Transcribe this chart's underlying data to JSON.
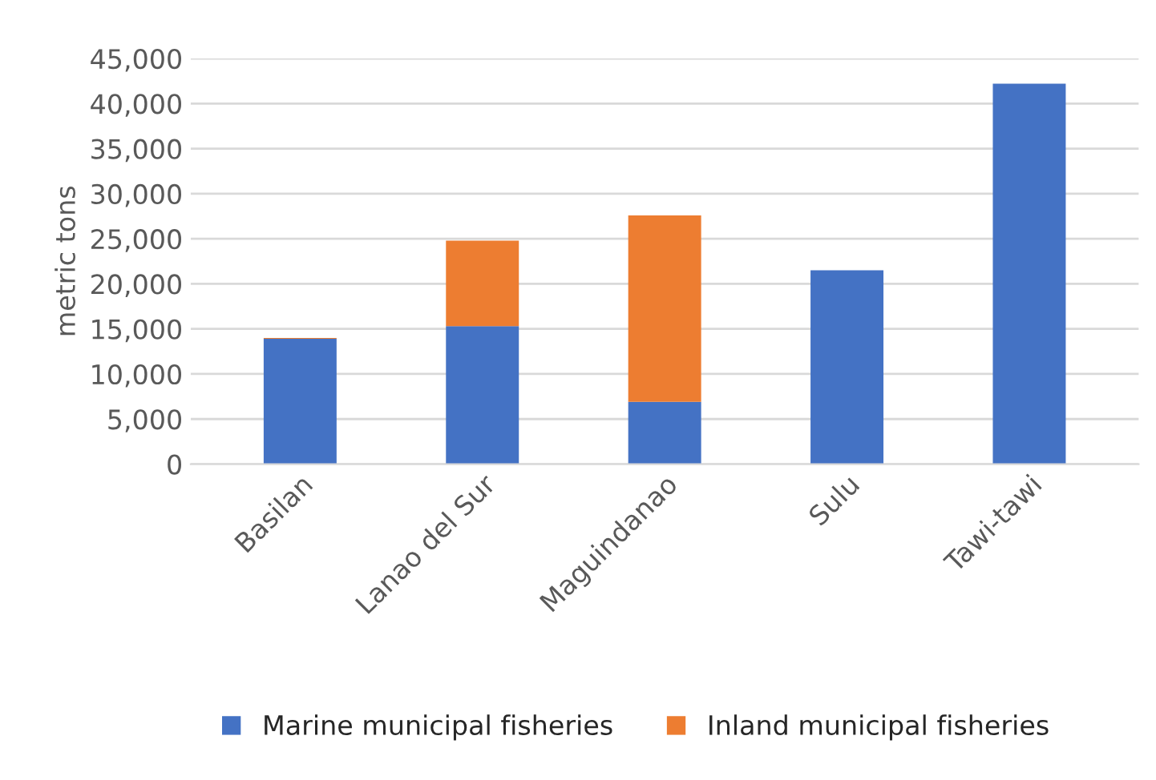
{
  "chart_data": {
    "type": "bar",
    "stacked": true,
    "ylabel": "metric tons",
    "categories": [
      "Basilan",
      "Lanao del Sur",
      "Maguindanao",
      "Sulu",
      "Tawi-tawi"
    ],
    "series": [
      {
        "name": "Marine municipal fisheries",
        "color": "#4472c4",
        "values": [
          13900,
          15300,
          6900,
          21500,
          42200
        ]
      },
      {
        "name": "Inland municipal fisheries",
        "color": "#ed7d31",
        "values": [
          100,
          9500,
          20700,
          null,
          null
        ]
      }
    ],
    "ylim": [
      0,
      45000
    ],
    "yticks": [
      {
        "value": 0,
        "label": "0"
      },
      {
        "value": 5000,
        "label": "5,000"
      },
      {
        "value": 10000,
        "label": "10,000"
      },
      {
        "value": 15000,
        "label": "15,000"
      },
      {
        "value": 20000,
        "label": "20,000"
      },
      {
        "value": 25000,
        "label": "25,000"
      },
      {
        "value": 30000,
        "label": "30,000"
      },
      {
        "value": 35000,
        "label": "35,000"
      },
      {
        "value": 40000,
        "label": "40,000"
      },
      {
        "value": 45000,
        "label": "45,000"
      }
    ],
    "grid": "y",
    "legend": "bottom"
  }
}
